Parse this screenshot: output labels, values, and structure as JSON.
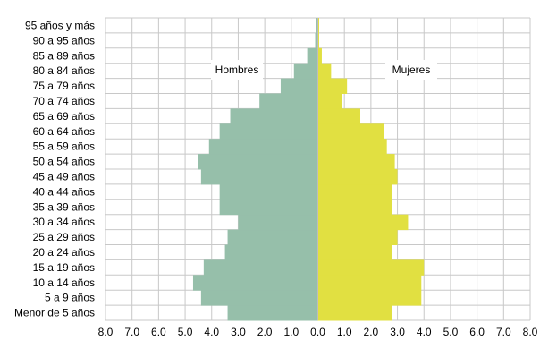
{
  "chart_data": {
    "type": "bar",
    "orientation": "horizontal",
    "categories": [
      "Menor de 5 años",
      "5 a 9 años",
      "10 a 14 años",
      "15 a 19 años",
      "20 a 24 años",
      "25 a 29 años",
      "30 a 34 años",
      "35 a 39 años",
      "40 a 44 años",
      "45 a 49 años",
      "50 a 54 años",
      "55 a 59 años",
      "60 a 64 años",
      "65 a 69 años",
      "70 a 74 años",
      "75 a 79 años",
      "80 a 84 años",
      "85 a 89 años",
      "90 a 95 años",
      "95 años y más"
    ],
    "series": [
      {
        "name": "Hombres",
        "color": "#96bfaa",
        "side": "left",
        "values": [
          3.4,
          4.4,
          4.7,
          4.3,
          3.5,
          3.4,
          3.0,
          3.7,
          3.7,
          4.4,
          4.5,
          4.1,
          3.7,
          3.3,
          2.2,
          1.4,
          0.9,
          0.4,
          0.1,
          0.05
        ]
      },
      {
        "name": "Mujeres",
        "color": "#e1e041",
        "side": "right",
        "values": [
          2.8,
          3.9,
          3.9,
          4.0,
          2.8,
          3.0,
          3.4,
          2.8,
          2.8,
          3.0,
          2.9,
          2.6,
          2.5,
          1.6,
          0.9,
          1.1,
          0.5,
          0.15,
          0.05,
          0.05
        ]
      }
    ],
    "xticks": [
      "8.0",
      "7.0",
      "6.0",
      "5.0",
      "4.0",
      "3.0",
      "2.0",
      "1.0",
      "0.0",
      "1.0",
      "2.0",
      "3.0",
      "4.0",
      "5.0",
      "6.0",
      "7.0",
      "8.0"
    ],
    "xlim": [
      -8,
      8
    ],
    "grid": true
  }
}
